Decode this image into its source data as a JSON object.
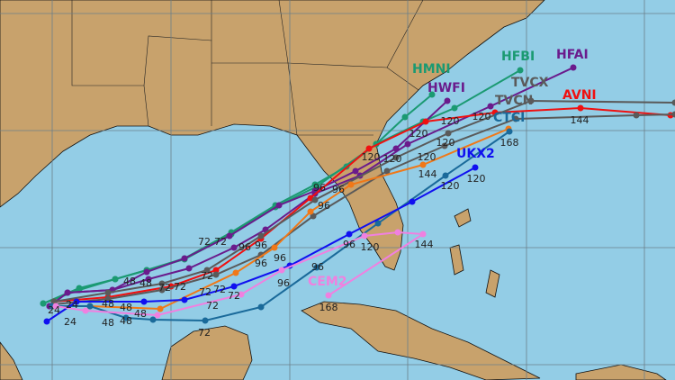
{
  "map": {
    "colors": {
      "water": "#93cde6",
      "land": "#c8a26c",
      "grid": "#6b7f8a"
    },
    "tracks": [
      {
        "name": "HMNI",
        "color": "#1b9a72",
        "hours": [
          "72",
          "96",
          "120"
        ]
      },
      {
        "name": "HFBI",
        "color": "#1b9a72",
        "hours": [
          "48",
          "72",
          "96",
          "120"
        ]
      },
      {
        "name": "HWFI",
        "color": "#6a1b8c",
        "hours": [
          "48",
          "96",
          "120"
        ]
      },
      {
        "name": "HFAI",
        "color": "#6a1b8c",
        "hours": [
          "24",
          "72",
          "96"
        ]
      },
      {
        "name": "AVNI",
        "color": "#f01010",
        "hours": [
          "72",
          "120",
          "144"
        ]
      },
      {
        "name": "TVCX",
        "color": "#5a5a5a",
        "hours": [
          "24",
          "72",
          "96",
          "120",
          "120"
        ]
      },
      {
        "name": "TVCN",
        "color": "#5a5a5a",
        "hours": [
          "48",
          "72",
          "96",
          "120"
        ]
      },
      {
        "name": "",
        "color": "#f07818",
        "hours": [
          "48",
          "72",
          "96",
          "144"
        ]
      },
      {
        "name": "CTCI",
        "color": "#1a6a9a",
        "hours": [
          "48",
          "72",
          "96",
          "120",
          "168"
        ]
      },
      {
        "name": "UKX2",
        "color": "#1010f0",
        "hours": [
          "24",
          "48",
          "72",
          "96",
          "120"
        ]
      },
      {
        "name": "CEM2",
        "color": "#f080e0",
        "hours": [
          "48",
          "72",
          "96",
          "120",
          "144",
          "168"
        ]
      }
    ]
  }
}
